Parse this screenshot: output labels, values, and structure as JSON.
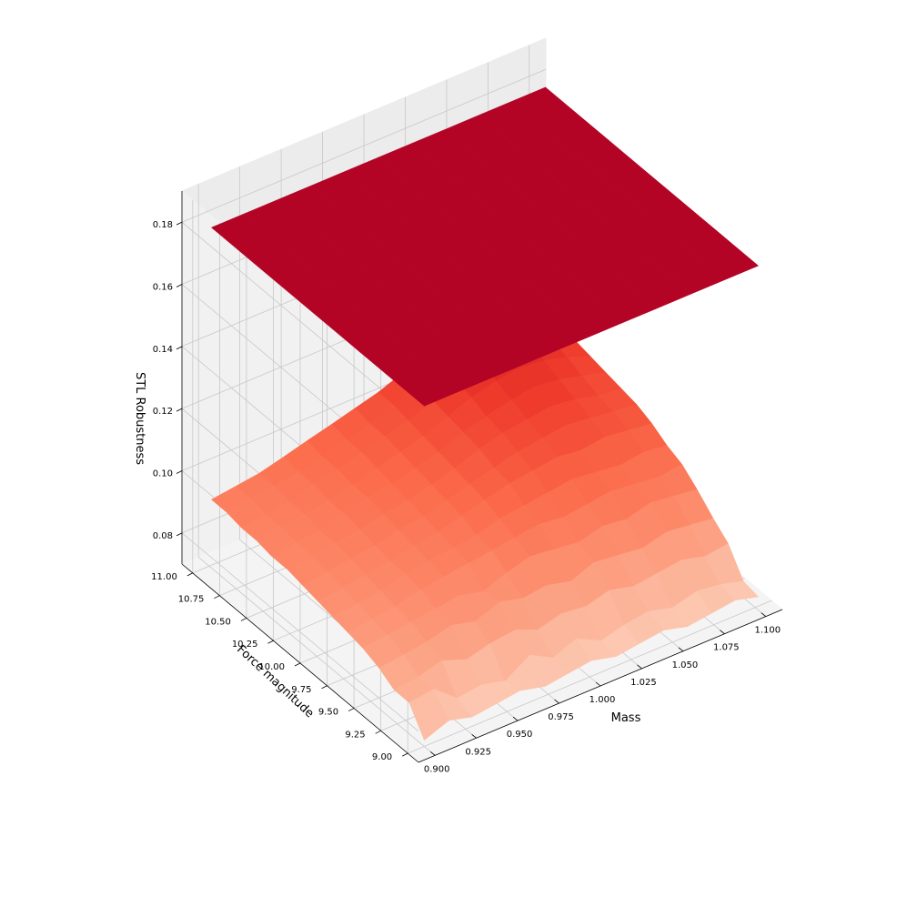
{
  "chart_data": {
    "type": "surface3d",
    "title": "",
    "xlabel": "Mass",
    "ylabel": "Force magnitude",
    "zlabel": "STL Robustness",
    "xlim": [
      0.89,
      1.11
    ],
    "ylim": [
      8.9,
      11.1
    ],
    "zlim": [
      0.07,
      0.19
    ],
    "x_ticks": [
      "0.900",
      "0.925",
      "0.950",
      "0.975",
      "1.000",
      "1.025",
      "1.050",
      "1.075",
      "1.100"
    ],
    "y_ticks": [
      "9.00",
      "9.25",
      "9.50",
      "9.75",
      "10.00",
      "10.25",
      "10.50",
      "10.75",
      "11.00"
    ],
    "z_ticks": [
      "0.08",
      "0.10",
      "0.12",
      "0.14",
      "0.16",
      "0.18"
    ],
    "grid": true,
    "mass_values": [
      0.9,
      0.915,
      0.929,
      0.944,
      0.958,
      0.973,
      0.987,
      1.001,
      1.016,
      1.03,
      1.045,
      1.059,
      1.074,
      1.088,
      1.102
    ],
    "force_values": [
      9.0,
      9.14,
      9.28,
      9.42,
      9.57,
      9.71,
      9.85,
      9.99,
      10.13,
      10.27,
      10.42,
      10.56,
      10.7,
      10.84,
      10.98
    ],
    "series": [
      {
        "name": "",
        "kind": "flat",
        "colormap": "Reds",
        "value": 0.1795
      },
      {
        "name": "",
        "kind": "surface",
        "colormap": "Reds",
        "z": [
          [
            0.072,
            0.075,
            0.073,
            0.074,
            0.075,
            0.073,
            0.074,
            0.075,
            0.073,
            0.074,
            0.075,
            0.073,
            0.074,
            0.075,
            0.073
          ],
          [
            0.08,
            0.081,
            0.075,
            0.076,
            0.074,
            0.079,
            0.075,
            0.078,
            0.074,
            0.076,
            0.077,
            0.075,
            0.077,
            0.076,
            0.074
          ],
          [
            0.08,
            0.081,
            0.083,
            0.08,
            0.082,
            0.083,
            0.08,
            0.082,
            0.081,
            0.083,
            0.081,
            0.082,
            0.083,
            0.081,
            0.082
          ],
          [
            0.083,
            0.084,
            0.085,
            0.087,
            0.085,
            0.088,
            0.086,
            0.087,
            0.085,
            0.088,
            0.087,
            0.086,
            0.088,
            0.087,
            0.086
          ],
          [
            0.085,
            0.086,
            0.087,
            0.088,
            0.089,
            0.087,
            0.09,
            0.092,
            0.091,
            0.09,
            0.092,
            0.091,
            0.093,
            0.092,
            0.091
          ],
          [
            0.086,
            0.087,
            0.088,
            0.09,
            0.091,
            0.092,
            0.093,
            0.094,
            0.095,
            0.094,
            0.095,
            0.096,
            0.095,
            0.094,
            0.095
          ],
          [
            0.087,
            0.088,
            0.089,
            0.091,
            0.092,
            0.093,
            0.094,
            0.096,
            0.097,
            0.098,
            0.099,
            0.098,
            0.097,
            0.098,
            0.097
          ],
          [
            0.088,
            0.089,
            0.09,
            0.091,
            0.093,
            0.094,
            0.096,
            0.098,
            0.1,
            0.101,
            0.102,
            0.101,
            0.102,
            0.101,
            0.1
          ],
          [
            0.089,
            0.09,
            0.091,
            0.092,
            0.094,
            0.095,
            0.097,
            0.099,
            0.101,
            0.103,
            0.104,
            0.105,
            0.104,
            0.103,
            0.102
          ],
          [
            0.09,
            0.091,
            0.092,
            0.093,
            0.095,
            0.096,
            0.098,
            0.1,
            0.103,
            0.105,
            0.106,
            0.107,
            0.106,
            0.104,
            0.103
          ],
          [
            0.09,
            0.091,
            0.092,
            0.094,
            0.096,
            0.097,
            0.099,
            0.101,
            0.104,
            0.106,
            0.108,
            0.109,
            0.108,
            0.106,
            0.104
          ],
          [
            0.091,
            0.092,
            0.093,
            0.094,
            0.096,
            0.098,
            0.1,
            0.102,
            0.105,
            0.108,
            0.11,
            0.111,
            0.11,
            0.108,
            0.105
          ],
          [
            0.091,
            0.092,
            0.093,
            0.095,
            0.097,
            0.099,
            0.101,
            0.103,
            0.106,
            0.109,
            0.112,
            0.113,
            0.112,
            0.109,
            0.106
          ],
          [
            0.092,
            0.093,
            0.094,
            0.095,
            0.097,
            0.099,
            0.101,
            0.104,
            0.107,
            0.11,
            0.113,
            0.114,
            0.113,
            0.11,
            0.107
          ],
          [
            0.092,
            0.093,
            0.094,
            0.096,
            0.098,
            0.1,
            0.102,
            0.104,
            0.107,
            0.11,
            0.113,
            0.115,
            0.113,
            0.11,
            0.107
          ]
        ]
      }
    ]
  }
}
